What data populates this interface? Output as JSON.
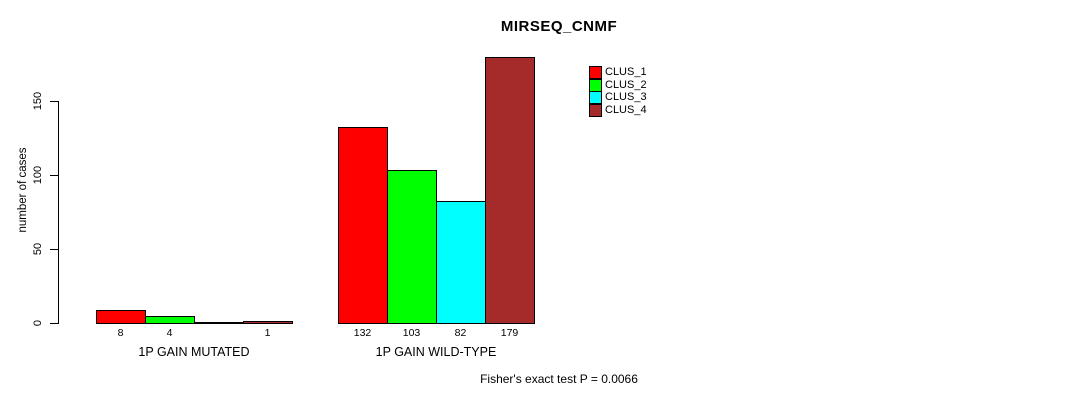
{
  "chart_data": {
    "type": "bar",
    "title": "MIRSEQ_CNMF",
    "ylabel": "number of cases",
    "xlabel": "",
    "yticks": [
      0,
      50,
      100,
      150
    ],
    "ylim": [
      0,
      185
    ],
    "grid": false,
    "legend_position": "top-right",
    "categories": [
      "1P GAIN MUTATED",
      "1P GAIN WILD-TYPE"
    ],
    "series": [
      {
        "name": "CLUS_1",
        "color": "#FF0000",
        "values": [
          8,
          132
        ]
      },
      {
        "name": "CLUS_2",
        "color": "#00FF00",
        "values": [
          4,
          103
        ]
      },
      {
        "name": "CLUS_3",
        "color": "#00FFFF",
        "values": [
          0,
          82
        ]
      },
      {
        "name": "CLUS_4",
        "color": "#A52A2A",
        "values": [
          1,
          179
        ]
      }
    ],
    "bar_value_labels": [
      [
        "8",
        "4",
        "",
        "1"
      ],
      [
        "132",
        "103",
        "82",
        "179"
      ]
    ],
    "footnote": "Fisher's exact test P = 0.0066",
    "colors": {
      "background": "#FFFFFF",
      "axis": "#000000",
      "text": "#000000"
    }
  }
}
